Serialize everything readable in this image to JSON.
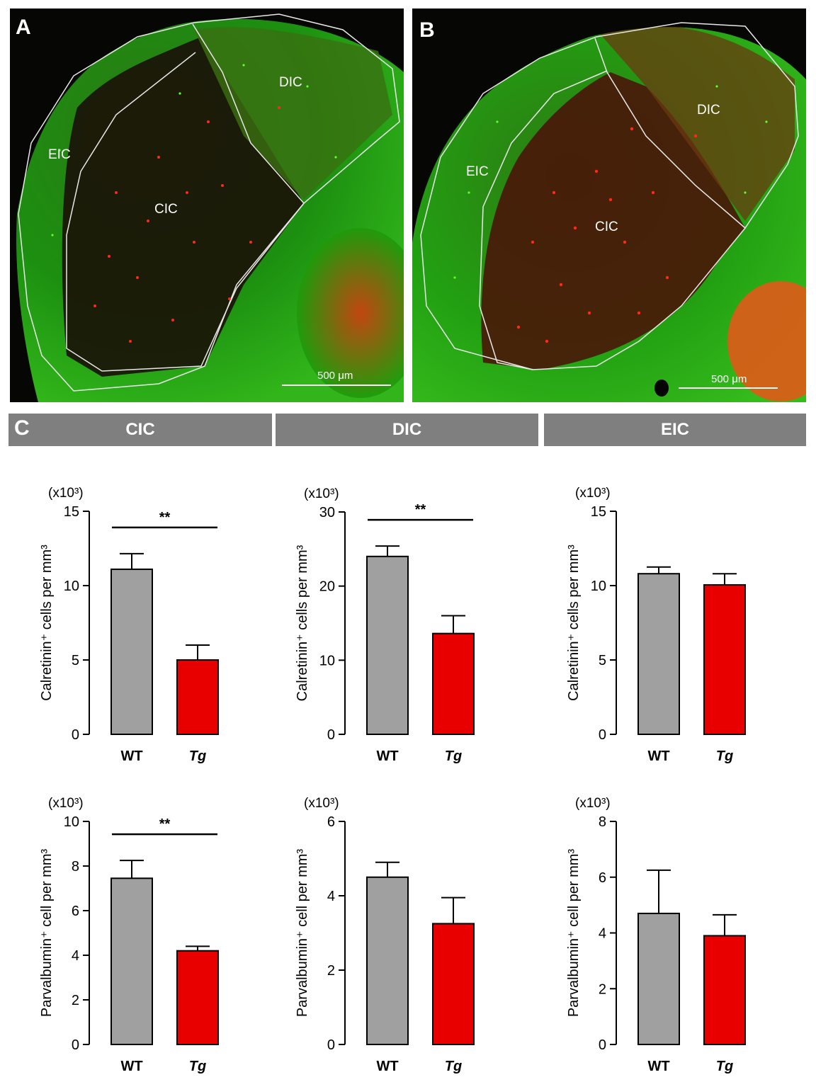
{
  "panel_a": {
    "letter": "A",
    "regions": {
      "dic": "DIC",
      "eic": "EIC",
      "cic": "CIC"
    },
    "scale_bar": "500 μm"
  },
  "panel_b": {
    "letter": "B",
    "regions": {
      "dic": "DIC",
      "eic": "EIC",
      "cic": "CIC"
    },
    "scale_bar": "500 μm"
  },
  "panel_c": {
    "letter": "C",
    "headers": [
      "CIC",
      "DIC",
      "EIC"
    ]
  },
  "colors": {
    "wt": "#a0a0a0",
    "tg": "#e80000",
    "header": "#7f7f7f"
  },
  "chart_data": [
    {
      "id": "calretinin-cic",
      "type": "bar",
      "region": "CIC",
      "multiplier": "(x10³)",
      "ylabel": "Calretinin⁺ cells per mm³",
      "categories": [
        "WT",
        "Tg"
      ],
      "values": [
        11.1,
        5.0
      ],
      "errors": [
        1.05,
        1.0
      ],
      "ylim": [
        0,
        15
      ],
      "yticks": [
        0,
        5,
        10,
        15
      ],
      "significance": "**"
    },
    {
      "id": "calretinin-dic",
      "type": "bar",
      "region": "DIC",
      "multiplier": "(x10³)",
      "ylabel": "Calretinin⁺ cells per mm³",
      "categories": [
        "WT",
        "Tg"
      ],
      "values": [
        24.0,
        13.6
      ],
      "errors": [
        1.4,
        2.4
      ],
      "ylim": [
        0,
        30
      ],
      "yticks": [
        0,
        10,
        20,
        30
      ],
      "significance": "**"
    },
    {
      "id": "calretinin-eic",
      "type": "bar",
      "region": "EIC",
      "multiplier": "(x10³)",
      "ylabel": "Calretinin⁺ cells per mm³",
      "categories": [
        "WT",
        "Tg"
      ],
      "values": [
        10.8,
        10.05
      ],
      "errors": [
        0.45,
        0.75
      ],
      "ylim": [
        0,
        15
      ],
      "yticks": [
        0,
        5,
        10,
        15
      ],
      "significance": ""
    },
    {
      "id": "parvalbumin-cic",
      "type": "bar",
      "region": "CIC",
      "multiplier": "(x10³)",
      "ylabel": "Parvalbumin⁺ cell per mm³",
      "categories": [
        "WT",
        "Tg"
      ],
      "values": [
        7.45,
        4.2
      ],
      "errors": [
        0.8,
        0.2
      ],
      "ylim": [
        0,
        10
      ],
      "yticks": [
        0,
        2,
        4,
        6,
        8,
        10
      ],
      "significance": "**"
    },
    {
      "id": "parvalbumin-dic",
      "type": "bar",
      "region": "DIC",
      "multiplier": "(x10³)",
      "ylabel": "Parvalbumin⁺ cell per mm³",
      "categories": [
        "WT",
        "Tg"
      ],
      "values": [
        4.5,
        3.25
      ],
      "errors": [
        0.4,
        0.7
      ],
      "ylim": [
        0,
        6
      ],
      "yticks": [
        0,
        2,
        4,
        6
      ],
      "significance": ""
    },
    {
      "id": "parvalbumin-eic",
      "type": "bar",
      "region": "EIC",
      "multiplier": "(x10³)",
      "ylabel": "Parvalbumin⁺ cell per mm³",
      "categories": [
        "WT",
        "Tg"
      ],
      "values": [
        4.7,
        3.9
      ],
      "errors": [
        1.55,
        0.75
      ],
      "ylim": [
        0,
        8
      ],
      "yticks": [
        0,
        2,
        4,
        6,
        8
      ],
      "significance": ""
    }
  ]
}
